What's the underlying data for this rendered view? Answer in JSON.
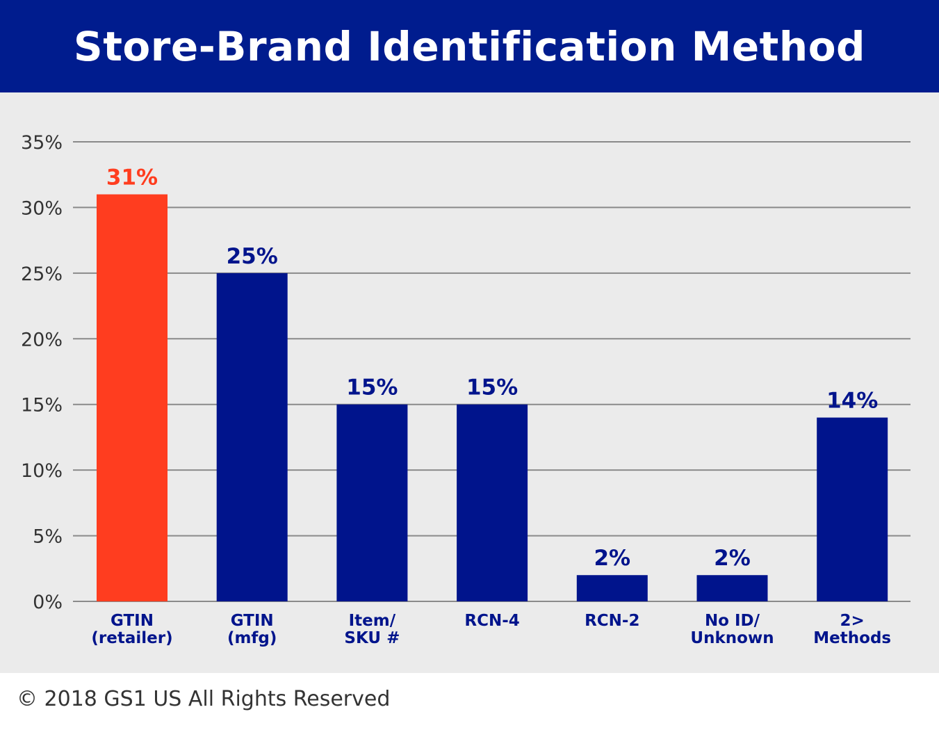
{
  "chart_data": {
    "type": "bar",
    "title": "Store-Brand Identification Method",
    "categories": [
      [
        "GTIN",
        "(retailer)"
      ],
      [
        "GTIN",
        "(mfg)"
      ],
      [
        "Item/",
        "SKU #"
      ],
      [
        "RCN-4"
      ],
      [
        "RCN-2"
      ],
      [
        "No ID/",
        "Unknown"
      ],
      [
        "2>",
        "Methods"
      ]
    ],
    "values": [
      31,
      25,
      15,
      15,
      2,
      2,
      14
    ],
    "data_labels": [
      "31%",
      "25%",
      "15%",
      "15%",
      "2%",
      "2%",
      "14%"
    ],
    "yticks": [
      "0%",
      "5%",
      "10%",
      "15%",
      "20%",
      "25%",
      "30%",
      "35%"
    ],
    "ylim": [
      0,
      35
    ],
    "grid": true,
    "xlabel": "",
    "ylabel": "",
    "colors": {
      "highlight": "#FF3D1F",
      "default": "#00148C",
      "header": "#001C8E",
      "plot_bg": "#EBEBEB"
    },
    "highlight_index": 0
  },
  "footer": "© 2018 GS1 US All Rights Reserved"
}
